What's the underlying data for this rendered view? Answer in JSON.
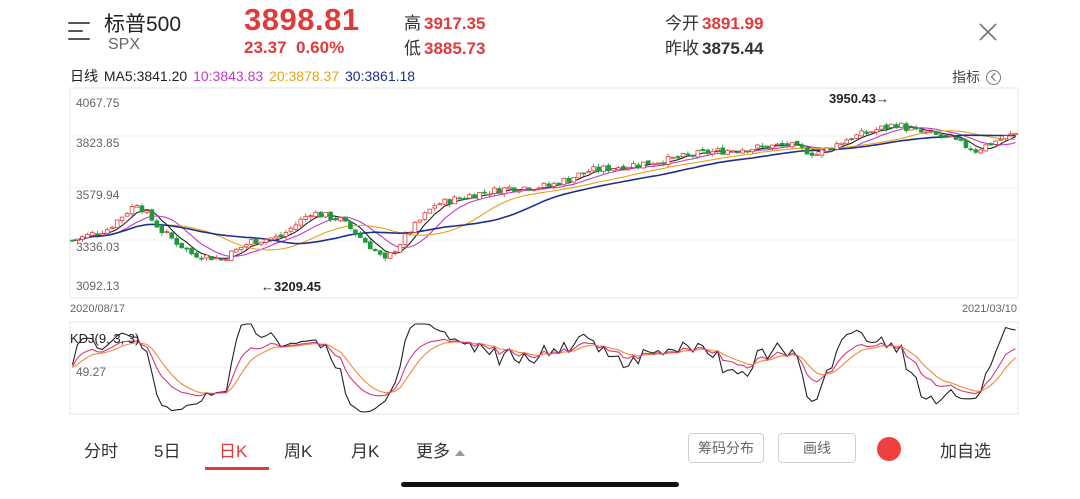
{
  "header": {
    "name": "标普500",
    "code": "SPX",
    "price": "3898.81",
    "change": "23.37",
    "change_pct": "0.60%",
    "high_label": "高",
    "high": "3917.35",
    "low_label": "低",
    "low": "3885.73",
    "open_label": "今开",
    "open": "3891.99",
    "prev_close_label": "昨收",
    "prev_close": "3875.44"
  },
  "ma_bar": {
    "period_label": "日线",
    "ma5": "MA5:3841.20",
    "ma10": "10:3843.83",
    "ma20": "20:3878.37",
    "ma30": "30:3861.18",
    "indicator_label": "指标"
  },
  "colors": {
    "up": "#e03a3a",
    "down": "#1f9a3a",
    "ma5": "#222222",
    "ma10": "#c03cc8",
    "ma20": "#e6a317",
    "ma30": "#1f2f8c",
    "kdj_k": "#222222",
    "kdj_d": "#ef8a3a",
    "kdj_j": "#d8377a"
  },
  "chart_data": {
    "type": "candlestick",
    "y_ticks": [
      "4067.75",
      "3823.85",
      "3579.94",
      "3336.03",
      "3092.13"
    ],
    "ylim": [
      3092.13,
      4067.75
    ],
    "x_start_label": "2020/08/17",
    "x_end_label": "2021/03/10",
    "max_annotation": "3950.43→",
    "min_annotation": "←3209.45",
    "trend_anchors": [
      [
        0,
        3330
      ],
      [
        7,
        3390
      ],
      [
        13,
        3530
      ],
      [
        18,
        3380
      ],
      [
        24,
        3260
      ],
      [
        30,
        3230
      ],
      [
        36,
        3325
      ],
      [
        42,
        3350
      ],
      [
        48,
        3480
      ],
      [
        54,
        3440
      ],
      [
        60,
        3300
      ],
      [
        63,
        3220
      ],
      [
        68,
        3380
      ],
      [
        73,
        3520
      ],
      [
        80,
        3570
      ],
      [
        88,
        3610
      ],
      [
        96,
        3620
      ],
      [
        104,
        3700
      ],
      [
        112,
        3730
      ],
      [
        120,
        3760
      ],
      [
        128,
        3800
      ],
      [
        136,
        3820
      ],
      [
        144,
        3840
      ],
      [
        150,
        3790
      ],
      [
        156,
        3870
      ],
      [
        162,
        3920
      ],
      [
        166,
        3950
      ],
      [
        170,
        3910
      ],
      [
        176,
        3880
      ],
      [
        182,
        3810
      ],
      [
        186,
        3860
      ],
      [
        190,
        3900
      ]
    ],
    "n_candles": 191,
    "kdj_tick": "49.27",
    "kdj_label": "KDJ(9, 3, 3)"
  },
  "tabs": [
    {
      "label": "分时"
    },
    {
      "label": "5日"
    },
    {
      "label": "日K"
    },
    {
      "label": "周K"
    },
    {
      "label": "月K"
    },
    {
      "label": "更多"
    }
  ],
  "buttons": {
    "chip": "筹码分布",
    "draw": "画线",
    "watchlist": "加自选"
  },
  "icons": {
    "menu": "menu-icon",
    "close": "close-icon",
    "indicator": "chevron-left-circle-icon",
    "record": "red-dot-icon"
  }
}
